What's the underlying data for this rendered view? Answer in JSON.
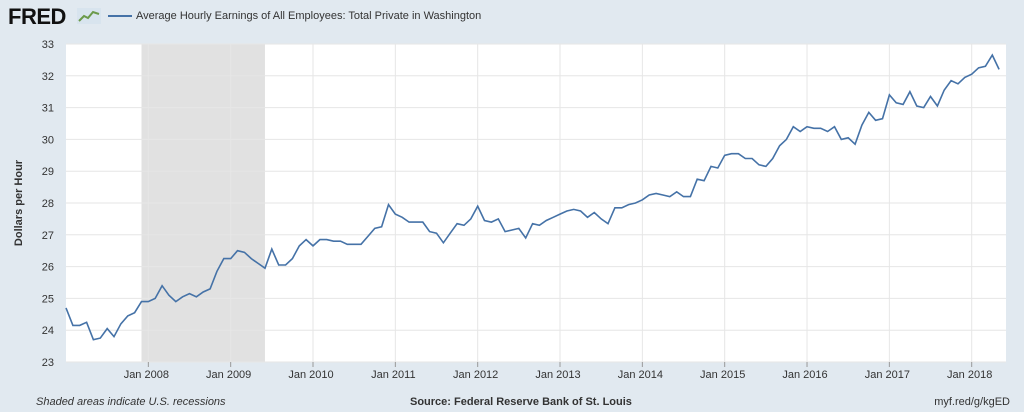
{
  "header": {
    "logo": "FRED",
    "legend_label": "Average Hourly Earnings of All Employees: Total Private in Washington"
  },
  "footer": {
    "left": "Shaded areas indicate U.S. recessions",
    "source": "Source: Federal Reserve Bank of St. Louis",
    "link": "myf.red/g/kgED"
  },
  "colors": {
    "line": "#4572a7",
    "plot_bg": "#ffffff",
    "page_bg": "#e1e9f0",
    "recession": "#e1e1e1"
  },
  "chart_data": {
    "type": "line",
    "title": "",
    "xlabel": "",
    "ylabel": "Dollars per Hour",
    "ylim": [
      23,
      33
    ],
    "yticks": [
      23,
      24,
      25,
      26,
      27,
      28,
      29,
      30,
      31,
      32,
      33
    ],
    "xlim": [
      "2007-01",
      "2018-06"
    ],
    "x_ticks": [
      {
        "date": "2008-01",
        "label": "Jan 2008"
      },
      {
        "date": "2009-01",
        "label": "Jan 2009"
      },
      {
        "date": "2010-01",
        "label": "Jan 2010"
      },
      {
        "date": "2011-01",
        "label": "Jan 2011"
      },
      {
        "date": "2012-01",
        "label": "Jan 2012"
      },
      {
        "date": "2013-01",
        "label": "Jan 2013"
      },
      {
        "date": "2014-01",
        "label": "Jan 2014"
      },
      {
        "date": "2015-01",
        "label": "Jan 2015"
      },
      {
        "date": "2016-01",
        "label": "Jan 2016"
      },
      {
        "date": "2017-01",
        "label": "Jan 2017"
      },
      {
        "date": "2018-01",
        "label": "Jan 2018"
      }
    ],
    "recessions": [
      {
        "start": "2007-12",
        "end": "2009-06"
      }
    ],
    "grid": true,
    "series": [
      {
        "start": "2007-01",
        "frequency": "monthly",
        "values": [
          24.7,
          24.15,
          24.15,
          24.25,
          23.7,
          23.75,
          24.05,
          23.8,
          24.2,
          24.45,
          24.55,
          24.9,
          24.9,
          25.0,
          25.4,
          25.1,
          24.9,
          25.05,
          25.15,
          25.05,
          25.2,
          25.3,
          25.85,
          26.25,
          26.25,
          26.5,
          26.45,
          26.25,
          26.1,
          25.95,
          26.55,
          26.05,
          26.05,
          26.25,
          26.65,
          26.85,
          26.65,
          26.85,
          26.85,
          26.8,
          26.8,
          26.7,
          26.7,
          26.7,
          26.95,
          27.2,
          27.25,
          27.95,
          27.65,
          27.55,
          27.4,
          27.4,
          27.4,
          27.1,
          27.05,
          26.75,
          27.05,
          27.35,
          27.3,
          27.5,
          27.9,
          27.45,
          27.4,
          27.5,
          27.1,
          27.15,
          27.2,
          26.9,
          27.35,
          27.3,
          27.45,
          27.55,
          27.65,
          27.75,
          27.8,
          27.75,
          27.55,
          27.7,
          27.5,
          27.35,
          27.85,
          27.85,
          27.95,
          28.0,
          28.1,
          28.25,
          28.3,
          28.25,
          28.2,
          28.35,
          28.2,
          28.2,
          28.75,
          28.7,
          29.15,
          29.1,
          29.5,
          29.55,
          29.55,
          29.4,
          29.4,
          29.2,
          29.15,
          29.4,
          29.8,
          30.0,
          30.4,
          30.25,
          30.4,
          30.35,
          30.35,
          30.25,
          30.4,
          30.0,
          30.05,
          29.85,
          30.45,
          30.85,
          30.6,
          30.65,
          31.4,
          31.15,
          31.1,
          31.5,
          31.05,
          31.0,
          31.35,
          31.05,
          31.55,
          31.85,
          31.75,
          31.95,
          32.05,
          32.25,
          32.3,
          32.65,
          32.2
        ]
      }
    ]
  }
}
